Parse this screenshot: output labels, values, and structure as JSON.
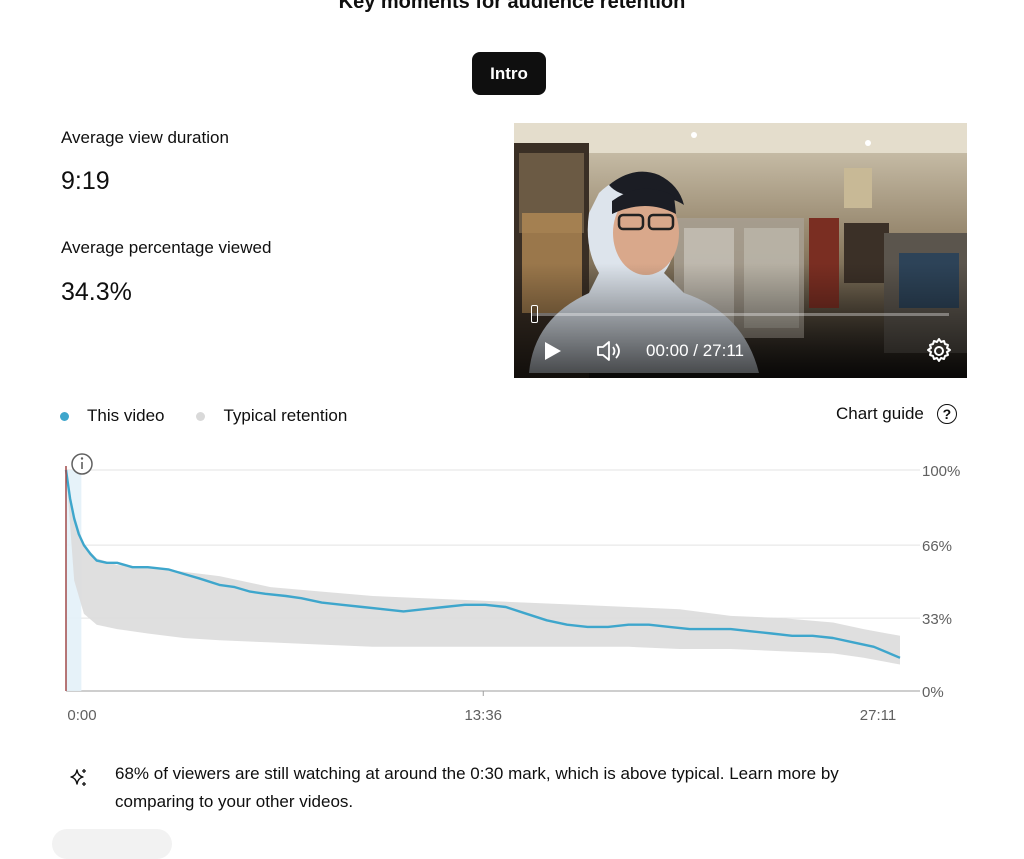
{
  "header": {
    "title": "Key moments for audience retention"
  },
  "segment": {
    "selected_label": "Intro"
  },
  "metrics": {
    "avg_view_duration_label": "Average view duration",
    "avg_view_duration_value": "9:19",
    "avg_pct_viewed_label": "Average percentage viewed",
    "avg_pct_viewed_value": "34.3%"
  },
  "player": {
    "timecode": "00:00 / 27:11",
    "progress": 0.0,
    "icons": [
      "play-icon",
      "volume-icon",
      "gear-icon"
    ]
  },
  "legend": {
    "this_video": "This video",
    "typical": "Typical retention",
    "chart_guide": "Chart guide"
  },
  "colors": {
    "this_video": "#3ea6cc",
    "typical_band": "#dcdcdc",
    "typical_dot": "#d9d9d9",
    "cursor_line": "#a04a4a"
  },
  "chart_data": {
    "type": "area",
    "title": "",
    "xlabel": "",
    "ylabel": "",
    "x_tick_labels": [
      "0:00",
      "13:36",
      "27:11"
    ],
    "y_tick_labels": [
      "100%",
      "66%",
      "33%",
      "0%"
    ],
    "xlim": [
      0,
      1631
    ],
    "ylim": [
      0,
      100
    ],
    "y_ticks": [
      0,
      33,
      66,
      100
    ],
    "x_ticks": [
      0,
      816,
      1631
    ],
    "grid": true,
    "legend_placement": "top-left",
    "series": [
      {
        "name": "This video",
        "x": [
          0,
          8,
          16,
          25,
          35,
          48,
          60,
          80,
          100,
          130,
          160,
          200,
          230,
          260,
          300,
          330,
          360,
          390,
          430,
          460,
          500,
          540,
          580,
          620,
          660,
          700,
          740,
          780,
          820,
          860,
          900,
          940,
          980,
          1020,
          1060,
          1100,
          1140,
          1180,
          1220,
          1260,
          1300,
          1340,
          1380,
          1420,
          1460,
          1500,
          1540,
          1580,
          1631
        ],
        "y": [
          100,
          87,
          78,
          71,
          66,
          62,
          59,
          58,
          58,
          56,
          56,
          55,
          53,
          51,
          48,
          47,
          45,
          44,
          43,
          42,
          40,
          39,
          38,
          37,
          36,
          37,
          38,
          39,
          39,
          38,
          35,
          32,
          30,
          29,
          29,
          30,
          30,
          29,
          28,
          28,
          28,
          27,
          26,
          25,
          25,
          24,
          22,
          20,
          15
        ]
      },
      {
        "name": "Typical retention",
        "x": [
          0,
          16,
          35,
          60,
          100,
          160,
          230,
          300,
          400,
          500,
          600,
          700,
          800,
          900,
          1000,
          1100,
          1200,
          1300,
          1400,
          1500,
          1560,
          1631
        ],
        "upper": [
          100,
          80,
          66,
          60,
          57,
          56,
          54,
          52,
          47,
          45,
          43,
          42,
          41,
          40,
          39,
          38,
          37,
          34,
          33,
          31,
          28,
          25
        ],
        "lower": [
          100,
          50,
          35,
          30,
          28,
          26,
          24,
          23,
          22,
          21,
          20,
          20,
          20,
          20,
          20,
          20,
          19,
          19,
          18,
          17,
          15,
          12
        ]
      }
    ],
    "highlight_range": [
      0,
      30
    ],
    "annotation_icon": "info-icon"
  },
  "insight": {
    "text": "68% of viewers are still watching at around the 0:30 mark, which is above typical. Learn more by comparing to your other videos.",
    "icon": "sparkle-icon"
  }
}
